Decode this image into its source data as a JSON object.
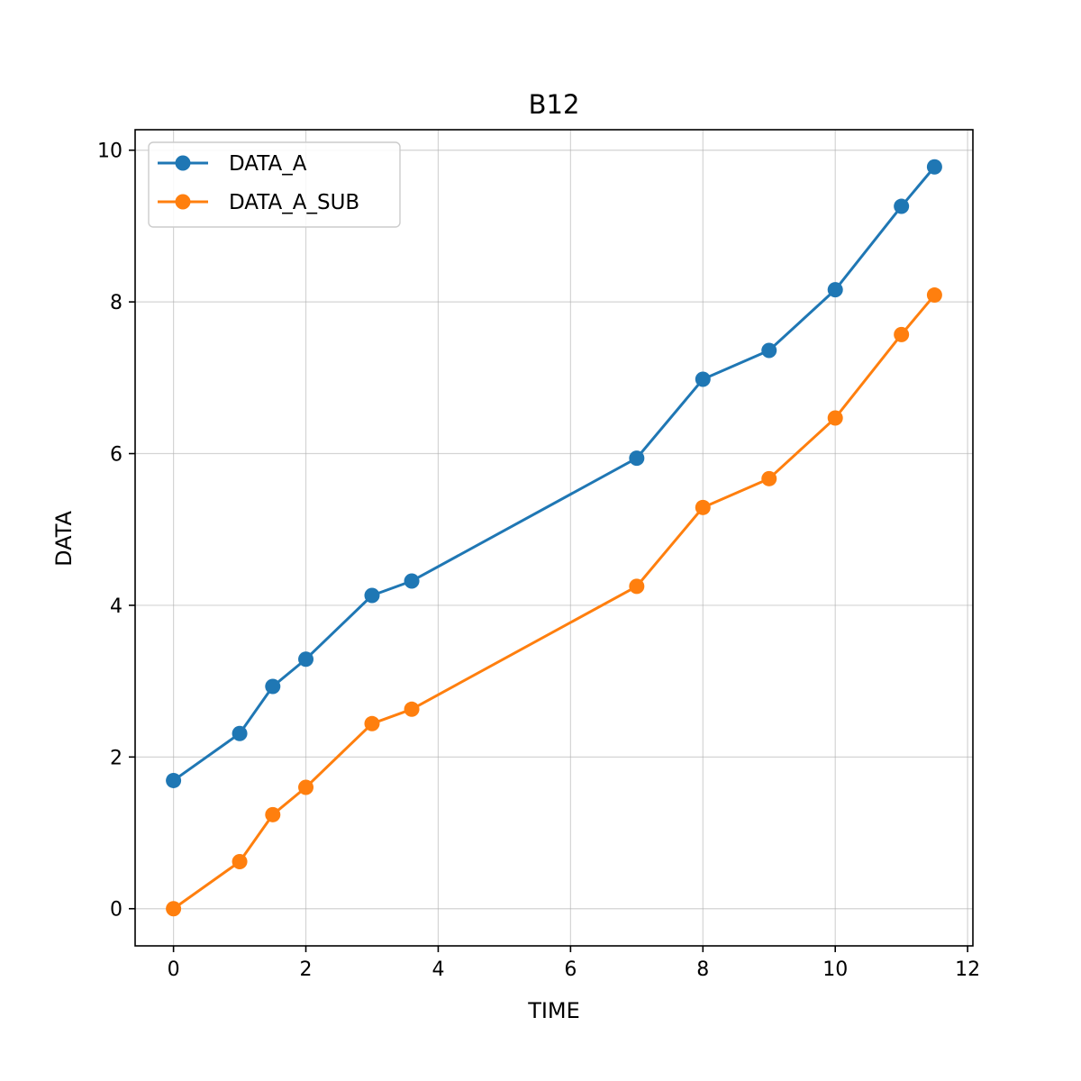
{
  "chart_data": {
    "type": "line",
    "title": "B12",
    "xlabel": "TIME",
    "ylabel": "DATA",
    "xlim": [
      -0.58,
      12.08
    ],
    "ylim": [
      -0.49,
      10.27
    ],
    "xticks": [
      0,
      2,
      4,
      6,
      8,
      10,
      12
    ],
    "yticks": [
      0,
      2,
      4,
      6,
      8,
      10
    ],
    "grid": true,
    "legend_position": "top-left",
    "series": [
      {
        "name": "DATA_A",
        "color": "#1f77b4",
        "x": [
          0,
          1,
          1.5,
          2,
          3,
          3.6,
          7,
          8,
          9,
          10,
          11,
          11.5
        ],
        "y": [
          1.69,
          2.31,
          2.93,
          3.29,
          4.13,
          4.32,
          5.94,
          6.98,
          7.36,
          8.16,
          9.26,
          9.78
        ]
      },
      {
        "name": "DATA_A_SUB",
        "color": "#ff7f0e",
        "x": [
          0,
          1,
          1.5,
          2,
          3,
          3.6,
          7,
          8,
          9,
          10,
          11,
          11.5
        ],
        "y": [
          0.0,
          0.62,
          1.24,
          1.6,
          2.44,
          2.63,
          4.25,
          5.29,
          5.67,
          6.47,
          7.57,
          8.09
        ]
      }
    ]
  }
}
